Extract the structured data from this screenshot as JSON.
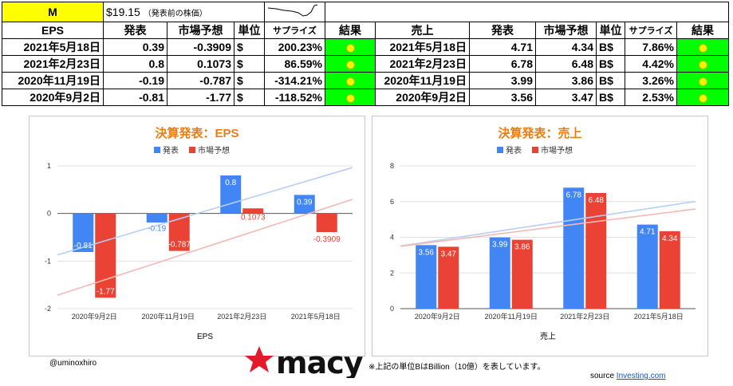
{
  "header": {
    "ticker": "M",
    "price": "$19.15",
    "price_note": "（発表前の株価）"
  },
  "eps_table": {
    "columns": [
      "EPS",
      "発表",
      "市場予想",
      "単位",
      "サプライズ",
      "結果"
    ],
    "rows": [
      {
        "date": "2021年5月18日",
        "actual": "0.39",
        "forecast": "-0.3909",
        "unit": "$",
        "surprise": "200.23%"
      },
      {
        "date": "2021年2月23日",
        "actual": "0.8",
        "forecast": "0.1073",
        "unit": "$",
        "surprise": "86.59%"
      },
      {
        "date": "2020年11月19日",
        "actual": "-0.19",
        "forecast": "-0.787",
        "unit": "$",
        "surprise": "-314.21%"
      },
      {
        "date": "2020年9月2日",
        "actual": "-0.81",
        "forecast": "-1.77",
        "unit": "$",
        "surprise": "-118.52%"
      }
    ]
  },
  "sales_table": {
    "columns": [
      "売上",
      "発表",
      "市場予想",
      "単位",
      "サプライズ",
      "結果"
    ],
    "rows": [
      {
        "date": "2021年5月18日",
        "actual": "4.71",
        "forecast": "4.34",
        "unit": "B$",
        "surprise": "7.86%"
      },
      {
        "date": "2021年2月23日",
        "actual": "6.78",
        "forecast": "6.48",
        "unit": "B$",
        "surprise": "4.42%"
      },
      {
        "date": "2020年11月19日",
        "actual": "3.99",
        "forecast": "3.86",
        "unit": "B$",
        "surprise": "3.26%"
      },
      {
        "date": "2020年9月2日",
        "actual": "3.56",
        "forecast": "3.47",
        "unit": "B$",
        "surprise": "2.53%"
      }
    ]
  },
  "colors": {
    "actual": "#4285f4",
    "forecast": "#ea4335",
    "title": "#e87d13",
    "beat": "#00ff00",
    "ticker_bg": "#ffff00"
  },
  "chart_data": [
    {
      "type": "bar",
      "title": "決算発表：EPS",
      "xlabel": "EPS",
      "ylabel": "",
      "categories": [
        "2020年9月2日",
        "2020年11月19日",
        "2021年2月23日",
        "2021年5月18日"
      ],
      "series": [
        {
          "name": "発表",
          "values": [
            -0.81,
            -0.19,
            0.8,
            0.39
          ]
        },
        {
          "name": "市場予想",
          "values": [
            -1.77,
            -0.787,
            0.1073,
            -0.3909
          ]
        }
      ],
      "value_labels": {
        "発表": [
          "-0.81",
          "-0.19",
          "0.8",
          "0.39"
        ],
        "市場予想": [
          "-1.77",
          "-0.787",
          "0.1073",
          "-0.3909"
        ]
      },
      "ylim": [
        -2,
        1
      ],
      "yticks": [
        "1",
        "0",
        "-1",
        "-2"
      ],
      "trendlines": true,
      "legend": "top-center",
      "grid": true
    },
    {
      "type": "bar",
      "title": "決算発表：売上",
      "xlabel": "売上",
      "ylabel": "",
      "categories": [
        "2020年9月2日",
        "2020年11月19日",
        "2021年2月23日",
        "2021年5月18日"
      ],
      "series": [
        {
          "name": "発表",
          "values": [
            3.56,
            3.99,
            6.78,
            4.71
          ]
        },
        {
          "name": "市場予想",
          "values": [
            3.47,
            3.86,
            6.48,
            4.34
          ]
        }
      ],
      "value_labels": {
        "発表": [
          "3.56",
          "3.99",
          "6.78",
          "4.71"
        ],
        "市場予想": [
          "3.47",
          "3.86",
          "6.48",
          "4.34"
        ]
      },
      "ylim": [
        0,
        8
      ],
      "yticks": [
        "8",
        "6",
        "4",
        "2",
        "0"
      ],
      "trendlines": true,
      "legend": "top-center",
      "grid": true
    }
  ],
  "footer": {
    "author": "@uminoxhiro",
    "brand": "macy's",
    "note": "※上記の単位BはBillion（10億）を表しています。",
    "source_label": "source",
    "source_link": "Investing.com"
  }
}
